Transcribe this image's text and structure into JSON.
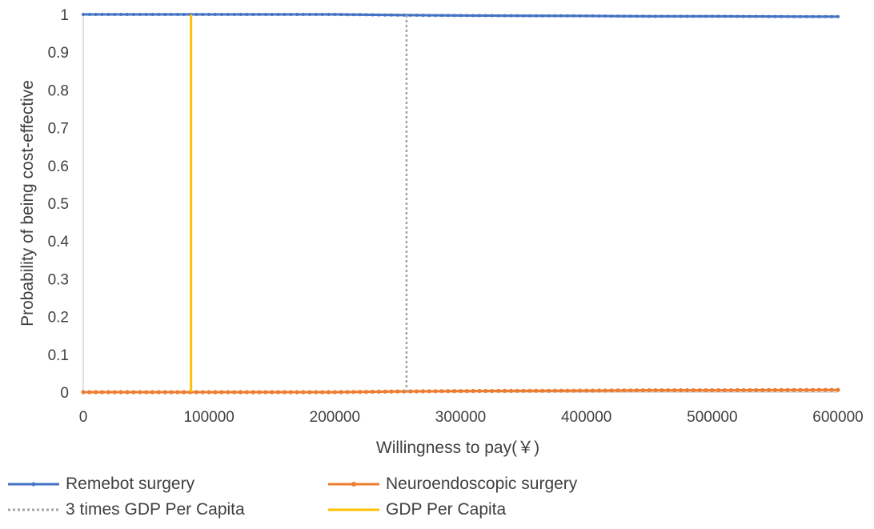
{
  "chart_data": {
    "type": "line",
    "xlabel": "Willingness to pay(￥)",
    "ylabel": "Probability of being cost-effective",
    "xlim": [
      0,
      600000
    ],
    "ylim": [
      0,
      1
    ],
    "x_ticks": [
      "0",
      "100000",
      "200000",
      "300000",
      "400000",
      "500000",
      "600000"
    ],
    "y_ticks": [
      "0",
      "0.1",
      "0.2",
      "0.3",
      "0.4",
      "0.5",
      "0.6",
      "0.7",
      "0.8",
      "0.9",
      "1"
    ],
    "grid": false,
    "legend_position": "bottom",
    "series": [
      {
        "name": "Remebot surgery",
        "color": "#4472C4",
        "style": "solid-marker",
        "x": [
          0,
          100000,
          200000,
          255000,
          300000,
          400000,
          450000,
          500000,
          600000
        ],
        "y": [
          1.0,
          1.0,
          1.0,
          0.998,
          0.997,
          0.996,
          0.995,
          0.995,
          0.994
        ]
      },
      {
        "name": "Neuroendoscopic surgery",
        "color": "#ED7D31",
        "style": "solid-marker",
        "x": [
          0,
          100000,
          200000,
          255000,
          300000,
          400000,
          450000,
          500000,
          600000
        ],
        "y": [
          0.0,
          0.0,
          0.0,
          0.002,
          0.003,
          0.004,
          0.005,
          0.005,
          0.006
        ]
      },
      {
        "name": "3 times GDP Per Capita",
        "color": "#A5A5A5",
        "style": "dotted-vertical",
        "x": [
          257000,
          257000
        ],
        "y": [
          0,
          1
        ]
      },
      {
        "name": "GDP Per Capita",
        "color": "#FFC000",
        "style": "solid-vertical",
        "x": [
          85700,
          85700
        ],
        "y": [
          0,
          1
        ]
      }
    ]
  }
}
